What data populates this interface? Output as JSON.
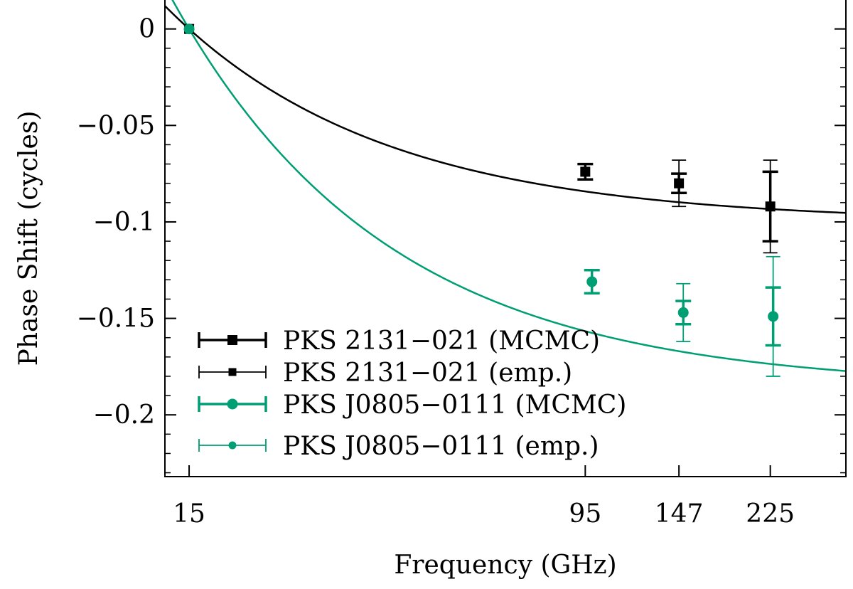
{
  "chart_data": {
    "type": "scatter",
    "xlabel": "Frequency (GHz)",
    "ylabel": "Phase Shift (cycles)",
    "x_scale": "log",
    "xlim": [
      13.4,
      320
    ],
    "ylim": [
      -0.232,
      0.015
    ],
    "x_ticks": [
      15,
      95,
      147,
      225
    ],
    "x_tick_labels": [
      "15",
      "95",
      "147",
      "225"
    ],
    "y_ticks": [
      0,
      -0.05,
      -0.1,
      -0.15,
      -0.2
    ],
    "y_tick_labels": [
      "0",
      "−0.05",
      "−0.1",
      "−0.15",
      "−0.2"
    ],
    "legend_position": "bottom-left",
    "series": [
      {
        "name": "PKS 2131−021 (MCMC)",
        "color": "#000000",
        "marker": "square",
        "style": "thick",
        "x": [
          15,
          95,
          147,
          225
        ],
        "y": [
          0,
          -0.074,
          -0.08,
          -0.092
        ],
        "err": [
          0,
          0.004,
          0.005,
          0.018
        ]
      },
      {
        "name": "PKS 2131−021 (emp.)",
        "color": "#000000",
        "marker": "square",
        "style": "thin",
        "x": [
          15,
          147,
          225
        ],
        "y": [
          0,
          -0.08,
          -0.092
        ],
        "err": [
          0,
          0.012,
          0.024
        ]
      },
      {
        "name": "PKS J0805−0111 (MCMC)",
        "color": "#009e73",
        "marker": "circle",
        "style": "thick",
        "x": [
          15,
          98,
          150,
          228
        ],
        "y": [
          0,
          -0.131,
          -0.147,
          -0.149
        ],
        "err": [
          0,
          0.006,
          0.006,
          0.015
        ]
      },
      {
        "name": "PKS J0805−0111 (emp.)",
        "color": "#009e73",
        "marker": "circle",
        "style": "thin",
        "x": [
          150,
          228
        ],
        "y": [
          -0.147,
          -0.149
        ],
        "err": [
          0.015,
          0.031
        ]
      }
    ],
    "fit_curves": [
      {
        "name": "PKS 2131−021 fit",
        "color": "#000000",
        "amplitude": -0.1,
        "alpha": 1
      },
      {
        "name": "PKS J0805−0111 fit",
        "color": "#009e73",
        "amplitude": -0.186,
        "alpha": 1
      }
    ]
  }
}
